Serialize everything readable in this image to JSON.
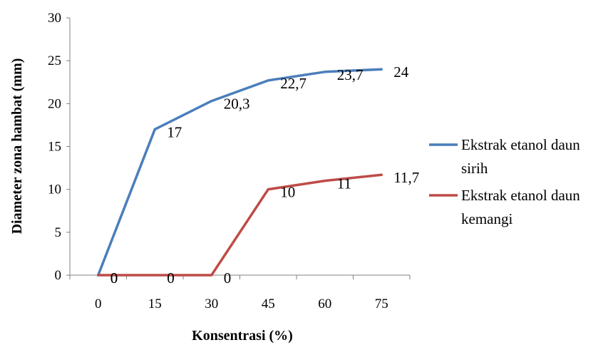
{
  "chart_data": {
    "type": "line",
    "title": "",
    "xlabel": "Konsentrasi (%)",
    "ylabel": "Diameter zona hambat (mm)",
    "categories": [
      "0",
      "15",
      "30",
      "45",
      "60",
      "75"
    ],
    "ylim": [
      0,
      30
    ],
    "yticks": [
      0,
      5,
      10,
      15,
      20,
      25,
      30
    ],
    "grid": false,
    "legend_position": "right",
    "series": [
      {
        "name_lines": [
          "Ekstrak etanol daun",
          "sirih"
        ],
        "color": "#4a7ebb",
        "values": [
          0,
          17,
          20.3,
          22.7,
          23.7,
          24
        ],
        "labels": [
          "0",
          "17",
          "20,3",
          "22,7",
          "23,7",
          "24"
        ]
      },
      {
        "name_lines": [
          "Ekstrak etanol daun",
          "kemangi"
        ],
        "color": "#be4b48",
        "values": [
          0,
          0,
          0,
          10,
          11,
          11.7
        ],
        "labels": [
          "0",
          "0",
          "0",
          "10",
          "11",
          "11,7"
        ]
      }
    ]
  }
}
